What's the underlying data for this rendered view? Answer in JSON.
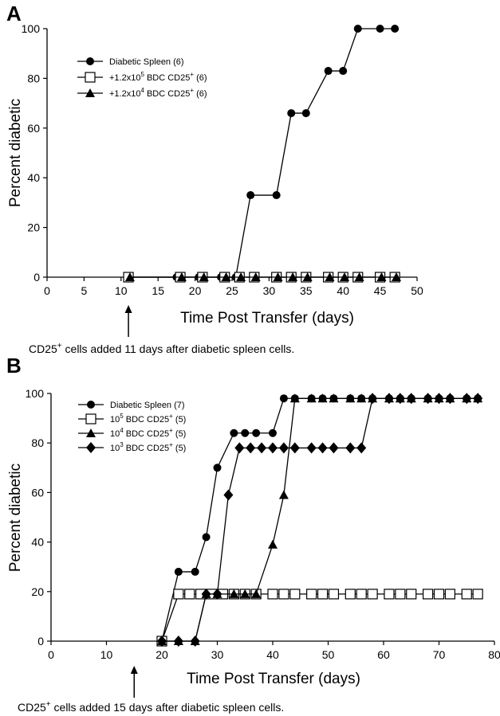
{
  "chart_data": [
    {
      "panel": "A",
      "type": "line",
      "xlabel": "Time Post Transfer (days)",
      "ylabel": "Percent diabetic",
      "xlim": [
        0,
        50
      ],
      "ylim": [
        0,
        100
      ],
      "xticks": [
        0,
        5,
        10,
        15,
        20,
        25,
        30,
        35,
        40,
        45,
        50
      ],
      "yticks": [
        0,
        20,
        40,
        60,
        80,
        100
      ],
      "legend_position": "upper-left",
      "series": [
        {
          "legend": {
            "pre": "Diabetic Spleen (6)"
          },
          "marker": "circle",
          "x": [
            11,
            17.5,
            20.5,
            23.5,
            25.5,
            27.5,
            31,
            33,
            35,
            38,
            40,
            42,
            45,
            47
          ],
          "y": [
            0,
            0,
            0,
            0,
            0,
            33,
            33,
            66,
            66,
            83,
            83,
            100,
            100,
            100
          ]
        },
        {
          "legend": {
            "pre": "+1.2x10",
            "sup": "5",
            "mid": " BDC CD25",
            "sup2": "+",
            "post": " (6)"
          },
          "marker": "open-square",
          "x": [
            11,
            18,
            21,
            24,
            26,
            28,
            31,
            33,
            35,
            38,
            40,
            42,
            45,
            47
          ],
          "y": [
            0,
            0,
            0,
            0,
            0,
            0,
            0,
            0,
            0,
            0,
            0,
            0,
            0,
            0
          ]
        },
        {
          "legend": {
            "pre": "+1.2x10",
            "sup": "4",
            "mid": " BDC CD25",
            "sup2": "+",
            "post": " (6)"
          },
          "marker": "triangle",
          "x": [
            11.2,
            18.2,
            21.2,
            24.2,
            26.2,
            28.2,
            31.2,
            33.2,
            35.2,
            38.2,
            40.2,
            42.2,
            45.2,
            47.2
          ],
          "y": [
            0,
            0,
            0,
            0,
            0,
            0,
            0,
            0,
            0,
            0,
            0,
            0,
            0,
            0
          ]
        }
      ],
      "annotation": {
        "x": 11,
        "pre": "CD25",
        "sup": "+",
        "post": " cells added 11 days after diabetic spleen cells."
      }
    },
    {
      "panel": "B",
      "type": "line",
      "xlabel": "Time Post Transfer (days)",
      "ylabel": "Percent diabetic",
      "xlim": [
        0,
        80
      ],
      "ylim": [
        0,
        100
      ],
      "xticks": [
        0,
        10,
        20,
        30,
        40,
        50,
        60,
        70,
        80
      ],
      "yticks": [
        0,
        20,
        40,
        60,
        80,
        100
      ],
      "legend_position": "upper-left",
      "series": [
        {
          "legend": {
            "pre": "Diabetic Spleen (7)"
          },
          "marker": "circle",
          "x": [
            20,
            23,
            26,
            28,
            30,
            33,
            35,
            37,
            40,
            42,
            44,
            47,
            49,
            51,
            54,
            56,
            58,
            61,
            63,
            65,
            68,
            70,
            72,
            75,
            77
          ],
          "y": [
            0,
            28,
            28,
            42,
            70,
            84,
            84,
            84,
            84,
            98,
            98,
            98,
            98,
            98,
            98,
            98,
            98,
            98,
            98,
            98,
            98,
            98,
            98,
            98,
            98
          ]
        },
        {
          "legend": {
            "pre": "10",
            "sup": "5",
            "mid": " BDC CD25",
            "sup2": "+",
            "post": " (5)"
          },
          "marker": "open-square",
          "x": [
            20,
            23,
            25,
            27,
            29,
            31,
            33,
            35,
            37,
            40,
            42,
            44,
            47,
            49,
            51,
            54,
            56,
            58,
            61,
            63,
            65,
            68,
            70,
            72,
            75,
            77
          ],
          "y": [
            0,
            19,
            19,
            19,
            19,
            19,
            19,
            19,
            19,
            19,
            19,
            19,
            19,
            19,
            19,
            19,
            19,
            19,
            19,
            19,
            19,
            19,
            19,
            19,
            19,
            19
          ]
        },
        {
          "legend": {
            "pre": "10",
            "sup": "4",
            "mid": " BDC CD25",
            "sup2": "+",
            "post": " (5)"
          },
          "marker": "triangle",
          "x": [
            20,
            23,
            26,
            28,
            30,
            33,
            35,
            37,
            40,
            42,
            44,
            47,
            49,
            51,
            54,
            56,
            58,
            61,
            63,
            65,
            68,
            70,
            72,
            75,
            77
          ],
          "y": [
            0,
            0,
            0,
            19,
            19,
            19,
            19,
            19,
            39,
            59,
            98,
            98,
            98,
            98,
            98,
            98,
            98,
            98,
            98,
            98,
            98,
            98,
            98,
            98,
            98
          ]
        },
        {
          "legend": {
            "pre": "10",
            "sup": "3",
            "mid": " BDC CD25",
            "sup2": "+",
            "post": " (5)"
          },
          "marker": "diamond",
          "x": [
            20,
            23,
            26,
            28,
            30,
            32,
            34,
            36,
            38,
            40,
            42,
            44,
            47,
            49,
            51,
            54,
            56,
            58,
            61,
            63,
            65,
            68,
            70,
            72,
            75,
            77
          ],
          "y": [
            0,
            0,
            0,
            19,
            19,
            59,
            78,
            78,
            78,
            78,
            78,
            78,
            78,
            78,
            78,
            78,
            78,
            98,
            98,
            98,
            98,
            98,
            98,
            98,
            98,
            98
          ]
        }
      ],
      "annotation": {
        "x": 15,
        "pre": "CD25",
        "sup": "+",
        "post": " cells added 15 days after diabetic spleen cells."
      }
    }
  ]
}
